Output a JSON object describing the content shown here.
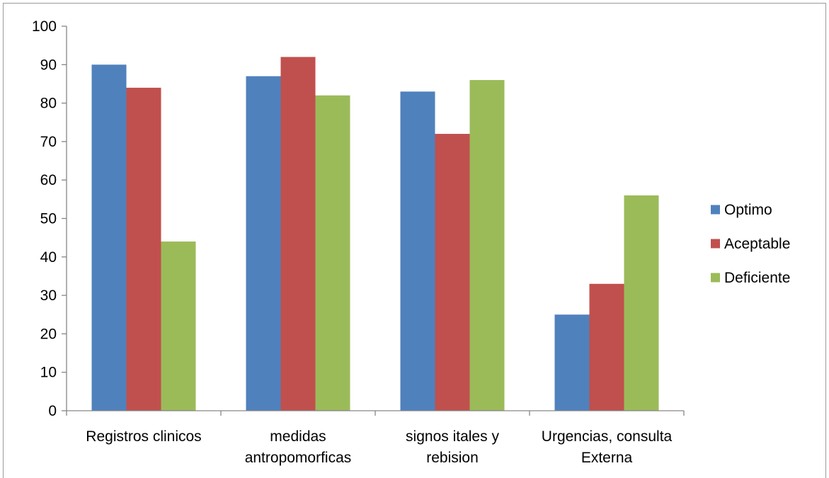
{
  "chart_data": {
    "type": "bar",
    "categories": [
      [
        "Registros clinicos"
      ],
      [
        "medidas",
        "antropomorficas"
      ],
      [
        "signos itales y",
        "rebision"
      ],
      [
        "Urgencias, consulta",
        "Externa"
      ]
    ],
    "series": [
      {
        "name": "Optimo",
        "color": "#4F81BD",
        "values": [
          90,
          87,
          83,
          25
        ]
      },
      {
        "name": "Aceptable",
        "color": "#C0504D",
        "values": [
          84,
          92,
          72,
          33
        ]
      },
      {
        "name": "Deficiente",
        "color": "#9BBB59",
        "values": [
          44,
          82,
          86,
          56
        ]
      }
    ],
    "ylim": [
      0,
      100
    ],
    "yticks": [
      "0",
      "10",
      "20",
      "30",
      "40",
      "50",
      "60",
      "70",
      "80",
      "90",
      "100"
    ],
    "grid": false,
    "legend_position": "right"
  }
}
